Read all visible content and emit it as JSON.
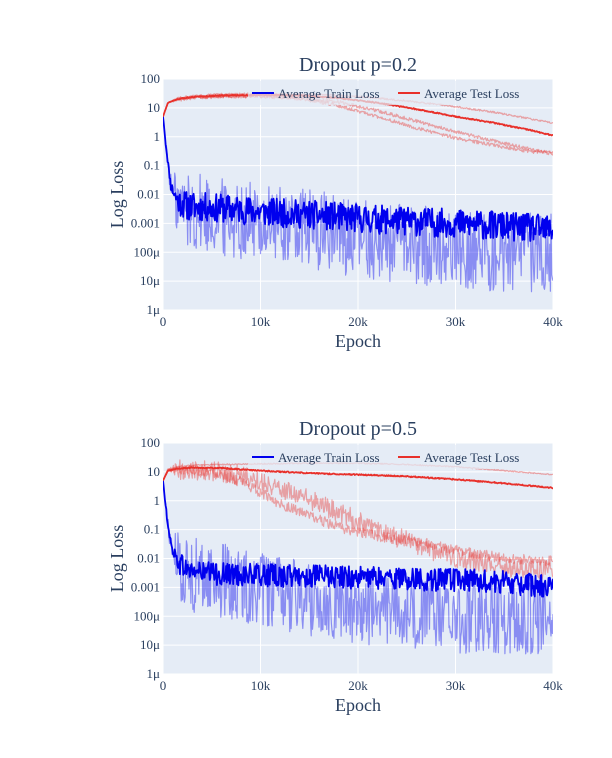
{
  "chart_data": [
    {
      "type": "line",
      "title": "Dropout p=0.2",
      "xlabel": "Epoch",
      "ylabel": "Log Loss",
      "y_scale": "log",
      "xlim": [
        0,
        40000
      ],
      "ylim": [
        1e-06,
        100
      ],
      "x_ticks": [
        {
          "v": 0,
          "label": "0"
        },
        {
          "v": 10000,
          "label": "10k"
        },
        {
          "v": 20000,
          "label": "20k"
        },
        {
          "v": 30000,
          "label": "30k"
        },
        {
          "v": 40000,
          "label": "40k"
        }
      ],
      "y_ticks": [
        {
          "v": 100,
          "label": "100"
        },
        {
          "v": 10,
          "label": "10"
        },
        {
          "v": 1,
          "label": "1"
        },
        {
          "v": 0.1,
          "label": "0.1"
        },
        {
          "v": 0.01,
          "label": "0.01"
        },
        {
          "v": 0.001,
          "label": "0.001"
        },
        {
          "v": 0.0001,
          "label": "100μ"
        },
        {
          "v": 1e-05,
          "label": "10μ"
        },
        {
          "v": 1e-06,
          "label": "1μ"
        }
      ],
      "grid": true,
      "legend_position": "top-right",
      "legend": [
        {
          "name": "Average Train Loss",
          "color": "#0000ee"
        },
        {
          "name": "Average Test Loss",
          "color": "#e8302a"
        }
      ],
      "series": [
        {
          "name": "Average Train Loss",
          "color": "#0000ee",
          "role": "mean",
          "kind": "train",
          "x": [
            0,
            300,
            800,
            1500,
            2500,
            5000,
            8000,
            10000,
            15000,
            20000,
            25000,
            30000,
            35000,
            40000
          ],
          "y": [
            5,
            0.5,
            0.02,
            0.006,
            0.004,
            0.0035,
            0.003,
            0.0025,
            0.002,
            0.0015,
            0.0012,
            0.001,
            0.0008,
            0.0006
          ],
          "noise": 0.5
        },
        {
          "name": "",
          "color": "#0000ee",
          "role": "run",
          "kind": "train",
          "x": [
            0,
            300,
            800,
            1500,
            2500,
            5000,
            8000,
            10000,
            15000,
            20000,
            25000,
            30000,
            35000,
            40000
          ],
          "y": [
            5,
            0.5,
            0.02,
            0.005,
            0.003,
            0.002,
            0.0015,
            0.001,
            0.0006,
            0.0003,
            0.0002,
            0.00015,
            0.0001,
            0.0001
          ],
          "noise": 1.4
        },
        {
          "name": "Average Test Loss",
          "color": "#e8302a",
          "role": "mean",
          "kind": "test",
          "x": [
            0,
            500,
            1500,
            3000,
            6000,
            10000,
            14000,
            18000,
            22000,
            26000,
            30000,
            34000,
            38000,
            40000
          ],
          "y": [
            5,
            15,
            20,
            24,
            27,
            28,
            27,
            22,
            15,
            9,
            5,
            3,
            1.6,
            1.1
          ],
          "noise": 0.02
        },
        {
          "name": "",
          "color": "#e8302a",
          "role": "run",
          "kind": "test",
          "x": [
            0,
            500,
            1500,
            3000,
            6000,
            10000,
            14000,
            18000,
            22000,
            26000,
            30000,
            34000,
            38000,
            40000
          ],
          "y": [
            5,
            15,
            22,
            26,
            30,
            31,
            30,
            27,
            22,
            16,
            11,
            7,
            4,
            3
          ],
          "noise": 0.03
        },
        {
          "name": "",
          "color": "#e8302a",
          "role": "run",
          "kind": "test",
          "x": [
            0,
            500,
            1500,
            3000,
            6000,
            10000,
            14000,
            18000,
            22000,
            26000,
            30000,
            34000,
            38000,
            40000
          ],
          "y": [
            5,
            15,
            20,
            23,
            26,
            26,
            23,
            16,
            8,
            3.5,
            1.5,
            0.7,
            0.35,
            0.25
          ],
          "noise": 0.06
        },
        {
          "name": "",
          "color": "#e8302a",
          "role": "run",
          "kind": "test",
          "x": [
            0,
            500,
            1500,
            3000,
            6000,
            10000,
            14000,
            18000,
            22000,
            26000,
            30000,
            34000,
            38000,
            40000
          ],
          "y": [
            5,
            15,
            19,
            22,
            25,
            25,
            21,
            12,
            5,
            2,
            0.9,
            0.5,
            0.3,
            0.3
          ],
          "noise": 0.06
        }
      ]
    },
    {
      "type": "line",
      "title": "Dropout p=0.5",
      "xlabel": "Epoch",
      "ylabel": "Log Loss",
      "y_scale": "log",
      "xlim": [
        0,
        40000
      ],
      "ylim": [
        1e-06,
        100
      ],
      "x_ticks": [
        {
          "v": 0,
          "label": "0"
        },
        {
          "v": 10000,
          "label": "10k"
        },
        {
          "v": 20000,
          "label": "20k"
        },
        {
          "v": 30000,
          "label": "30k"
        },
        {
          "v": 40000,
          "label": "40k"
        }
      ],
      "y_ticks": [
        {
          "v": 100,
          "label": "100"
        },
        {
          "v": 10,
          "label": "10"
        },
        {
          "v": 1,
          "label": "1"
        },
        {
          "v": 0.1,
          "label": "0.1"
        },
        {
          "v": 0.01,
          "label": "0.01"
        },
        {
          "v": 0.001,
          "label": "0.001"
        },
        {
          "v": 0.0001,
          "label": "100μ"
        },
        {
          "v": 1e-05,
          "label": "10μ"
        },
        {
          "v": 1e-06,
          "label": "1μ"
        }
      ],
      "grid": true,
      "legend_position": "top-right",
      "legend": [
        {
          "name": "Average Train Loss",
          "color": "#0000ee"
        },
        {
          "name": "Average Test Loss",
          "color": "#e8302a"
        }
      ],
      "series": [
        {
          "name": "Average Train Loss",
          "color": "#0000ee",
          "role": "mean",
          "kind": "train",
          "x": [
            0,
            300,
            800,
            1500,
            2500,
            5000,
            8000,
            10000,
            15000,
            20000,
            25000,
            30000,
            35000,
            40000
          ],
          "y": [
            5,
            0.5,
            0.03,
            0.008,
            0.004,
            0.003,
            0.0028,
            0.0026,
            0.0024,
            0.0022,
            0.002,
            0.0018,
            0.0015,
            0.001
          ],
          "noise": 0.4
        },
        {
          "name": "",
          "color": "#0000ee",
          "role": "run",
          "kind": "train",
          "x": [
            0,
            300,
            800,
            1500,
            2500,
            5000,
            8000,
            10000,
            15000,
            20000,
            25000,
            30000,
            35000,
            40000
          ],
          "y": [
            5,
            0.5,
            0.03,
            0.007,
            0.003,
            0.002,
            0.0012,
            0.0008,
            0.0004,
            0.0002,
            0.00015,
            0.0001,
            0.0001,
            0.0001
          ],
          "noise": 1.3
        },
        {
          "name": "Average Test Loss",
          "color": "#e8302a",
          "role": "mean",
          "kind": "test",
          "x": [
            0,
            500,
            1500,
            3000,
            6000,
            10000,
            15000,
            20000,
            25000,
            30000,
            35000,
            40000
          ],
          "y": [
            5,
            11,
            13,
            14,
            13.5,
            11,
            9,
            8,
            7,
            5.5,
            4,
            2.8
          ],
          "noise": 0.02
        },
        {
          "name": "",
          "color": "#e8302a",
          "role": "run",
          "kind": "test",
          "x": [
            0,
            500,
            1500,
            3000,
            6000,
            10000,
            15000,
            20000,
            25000,
            30000,
            35000,
            40000
          ],
          "y": [
            5,
            12,
            15,
            17,
            18,
            19,
            20,
            20,
            18,
            15,
            11,
            8
          ],
          "noise": 0.02
        },
        {
          "name": "",
          "color": "#e8302a",
          "role": "run",
          "kind": "test",
          "x": [
            0,
            500,
            1500,
            3000,
            6000,
            9000,
            12000,
            15000,
            18000,
            21000,
            25000,
            30000,
            35000,
            40000
          ],
          "y": [
            5,
            11,
            12,
            12,
            9,
            3,
            0.8,
            0.3,
            0.12,
            0.07,
            0.04,
            0.02,
            0.01,
            0.008
          ],
          "noise": 0.18
        },
        {
          "name": "",
          "color": "#e8302a",
          "role": "run",
          "kind": "test",
          "x": [
            0,
            500,
            1500,
            3000,
            6000,
            10000,
            14000,
            18000,
            22000,
            26000,
            30000,
            35000,
            40000
          ],
          "y": [
            5,
            11,
            12,
            12,
            10,
            5,
            1.5,
            0.4,
            0.1,
            0.03,
            0.01,
            0.005,
            0.004
          ],
          "noise": 0.35
        }
      ]
    }
  ]
}
